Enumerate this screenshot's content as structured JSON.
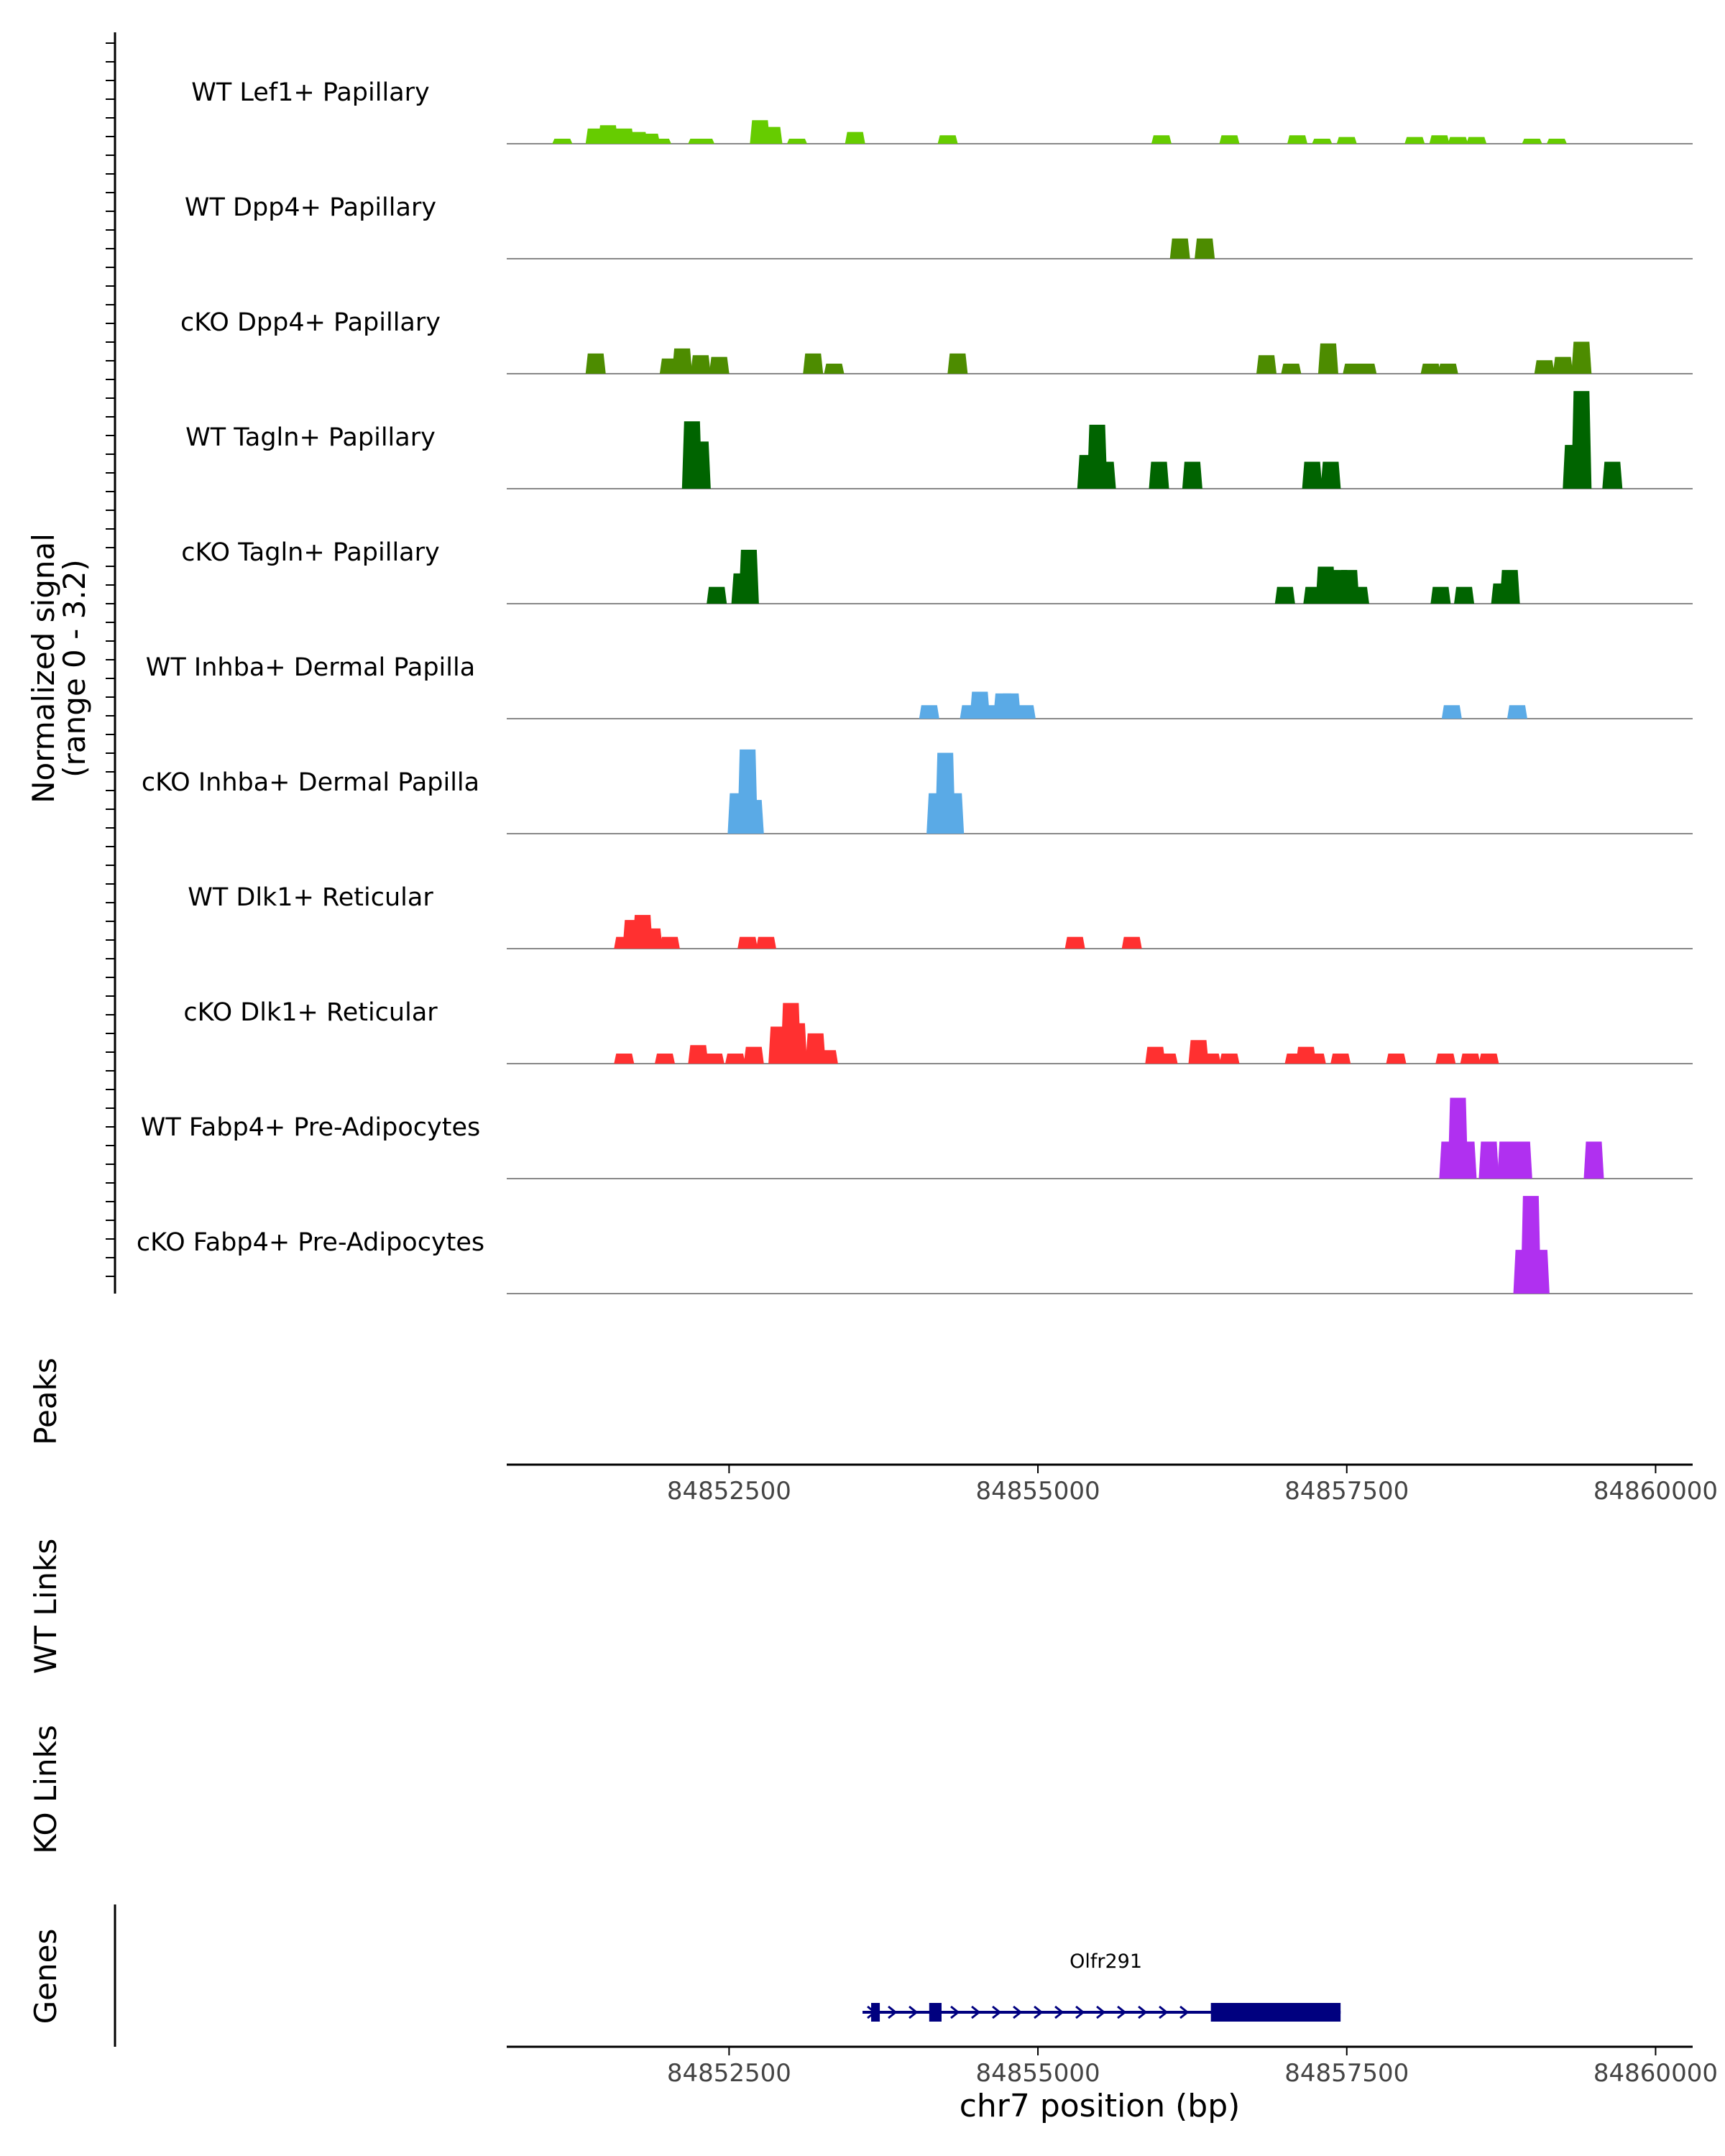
{
  "chart_data": {
    "type": "area",
    "title": "",
    "y_axis_label_line1": "Normalized signal",
    "y_axis_label_line2": "(range 0 - 3.2)",
    "y_range": [
      0,
      3.2
    ],
    "x_range": [
      84850700,
      84860300
    ],
    "x_ticks": [
      84852500,
      84855000,
      84857500,
      84860000
    ],
    "x_tick_labels": [
      "84852500",
      "84855000",
      "84857500",
      "84860000"
    ],
    "xlabel": "chr7 position (bp)",
    "tracks": [
      {
        "name": "WT Lef1+ Papillary",
        "color": "#66cc00",
        "peaks": [
          [
            84851150,
            0.15
          ],
          [
            84851420,
            0.45
          ],
          [
            84851520,
            0.55
          ],
          [
            84851650,
            0.45
          ],
          [
            84851760,
            0.35
          ],
          [
            84851860,
            0.3
          ],
          [
            84851950,
            0.15
          ],
          [
            84852250,
            0.15
          ],
          [
            84852300,
            0.15
          ],
          [
            84852750,
            0.7
          ],
          [
            84852850,
            0.5
          ],
          [
            84853050,
            0.15
          ],
          [
            84853520,
            0.35
          ],
          [
            84854270,
            0.25
          ],
          [
            84856000,
            0.25
          ],
          [
            84856550,
            0.25
          ],
          [
            84857100,
            0.25
          ],
          [
            84857300,
            0.15
          ],
          [
            84857500,
            0.2
          ],
          [
            84858050,
            0.2
          ],
          [
            84858250,
            0.25
          ],
          [
            84858400,
            0.2
          ],
          [
            84858550,
            0.2
          ],
          [
            84859000,
            0.15
          ],
          [
            84859200,
            0.15
          ]
        ]
      },
      {
        "name": "WT Dpp4+ Papillary",
        "color": "#4d8c00",
        "peaks": [
          [
            84856150,
            0.6
          ],
          [
            84856350,
            0.6
          ]
        ]
      },
      {
        "name": "cKO Dpp4+ Papillary",
        "color": "#4d8c00",
        "peaks": [
          [
            84851420,
            0.6
          ],
          [
            84852020,
            0.45
          ],
          [
            84852120,
            0.75
          ],
          [
            84852270,
            0.55
          ],
          [
            84852420,
            0.5
          ],
          [
            84853180,
            0.6
          ],
          [
            84853350,
            0.3
          ],
          [
            84854350,
            0.6
          ],
          [
            84856850,
            0.55
          ],
          [
            84857050,
            0.3
          ],
          [
            84857350,
            0.9
          ],
          [
            84857550,
            0.3
          ],
          [
            84857660,
            0.3
          ],
          [
            84858180,
            0.3
          ],
          [
            84858320,
            0.3
          ],
          [
            84859100,
            0.4
          ],
          [
            84859250,
            0.5
          ],
          [
            84859400,
            0.95
          ]
        ]
      },
      {
        "name": "WT Tagln+ Papillary",
        "color": "#006400",
        "peaks": [
          [
            84852200,
            2.0
          ],
          [
            84852270,
            1.4
          ],
          [
            84855400,
            1.0
          ],
          [
            84855480,
            1.9
          ],
          [
            84855550,
            0.8
          ],
          [
            84855980,
            0.8
          ],
          [
            84856250,
            0.8
          ],
          [
            84857220,
            0.8
          ],
          [
            84857370,
            0.8
          ],
          [
            84859330,
            1.3
          ],
          [
            84859400,
            2.9
          ],
          [
            84859650,
            0.8
          ]
        ]
      },
      {
        "name": "cKO Tagln+ Papillary",
        "color": "#006400",
        "peaks": [
          [
            84852400,
            0.5
          ],
          [
            84852600,
            0.9
          ],
          [
            84852660,
            1.6
          ],
          [
            84857000,
            0.5
          ],
          [
            84857230,
            0.5
          ],
          [
            84857330,
            1.1
          ],
          [
            84857380,
            0.7
          ],
          [
            84857440,
            1.0
          ],
          [
            84857520,
            1.0
          ],
          [
            84857600,
            0.5
          ],
          [
            84858260,
            0.5
          ],
          [
            84858450,
            0.5
          ],
          [
            84858750,
            0.6
          ],
          [
            84858820,
            1.0
          ]
        ]
      },
      {
        "name": "WT Inhba+ Dermal Papilla",
        "color": "#5aaae6",
        "peaks": [
          [
            84854120,
            0.4
          ],
          [
            84854450,
            0.4
          ],
          [
            84854530,
            0.8
          ],
          [
            84854600,
            0.4
          ],
          [
            84854720,
            0.75
          ],
          [
            84854780,
            0.75
          ],
          [
            84854900,
            0.4
          ],
          [
            84858350,
            0.4
          ],
          [
            84858880,
            0.4
          ]
        ]
      },
      {
        "name": "cKO Inhba+ Dermal Papilla",
        "color": "#5aaae6",
        "peaks": [
          [
            84852570,
            1.2
          ],
          [
            84852650,
            2.5
          ],
          [
            84852700,
            1.0
          ],
          [
            84854180,
            1.2
          ],
          [
            84854250,
            2.4
          ],
          [
            84854320,
            1.2
          ]
        ]
      },
      {
        "name": "WT Dlk1+ Reticular",
        "color": "#ff3030",
        "peaks": [
          [
            84851650,
            0.35
          ],
          [
            84851720,
            0.85
          ],
          [
            84851800,
            1.0
          ],
          [
            84851880,
            0.6
          ],
          [
            84852020,
            0.35
          ],
          [
            84852650,
            0.35
          ],
          [
            84852800,
            0.35
          ],
          [
            84855300,
            0.35
          ],
          [
            84855760,
            0.35
          ]
        ]
      },
      {
        "name": "cKO Dlk1+ Reticular",
        "color": "#ff3030",
        "peaks": [
          [
            84851650,
            0.3
          ],
          [
            84851980,
            0.3
          ],
          [
            84852250,
            0.55
          ],
          [
            84852380,
            0.3
          ],
          [
            84852550,
            0.3
          ],
          [
            84852700,
            0.5
          ],
          [
            84852900,
            1.1
          ],
          [
            84853000,
            1.8
          ],
          [
            84853050,
            1.2
          ],
          [
            84853200,
            0.9
          ],
          [
            84853300,
            0.4
          ],
          [
            84855950,
            0.5
          ],
          [
            84856050,
            0.3
          ],
          [
            84856300,
            0.7
          ],
          [
            84856400,
            0.3
          ],
          [
            84856550,
            0.3
          ],
          [
            84857080,
            0.3
          ],
          [
            84857170,
            0.5
          ],
          [
            84857250,
            0.3
          ],
          [
            84857450,
            0.3
          ],
          [
            84857900,
            0.3
          ],
          [
            84858300,
            0.3
          ],
          [
            84858500,
            0.3
          ],
          [
            84858650,
            0.3
          ]
        ]
      },
      {
        "name": "WT Fabp4+ Pre-Adipocytes",
        "color": "#b030f0",
        "peaks": [
          [
            84858330,
            1.1
          ],
          [
            84858400,
            2.4
          ],
          [
            84858470,
            1.1
          ],
          [
            84858650,
            1.1
          ],
          [
            84858800,
            1.1
          ],
          [
            84858920,
            1.1
          ],
          [
            84859500,
            1.1
          ]
        ]
      },
      {
        "name": "cKO Fabp4+ Pre-Adipocytes",
        "color": "#b030f0",
        "peaks": [
          [
            84858930,
            1.3
          ],
          [
            84858990,
            2.9
          ],
          [
            84859060,
            1.3
          ]
        ]
      }
    ],
    "panels": {
      "peaks_label": "Peaks",
      "wt_links_label": "WT Links",
      "ko_links_label": "KO Links",
      "genes_label": "Genes"
    },
    "gene": {
      "name": "Olfr291",
      "color": "#00007f",
      "start": 84853650,
      "end": 84857450,
      "exons": [
        [
          84853650,
          84853720
        ],
        [
          84854120,
          84854220
        ],
        [
          84856400,
          84857450
        ]
      ]
    }
  }
}
